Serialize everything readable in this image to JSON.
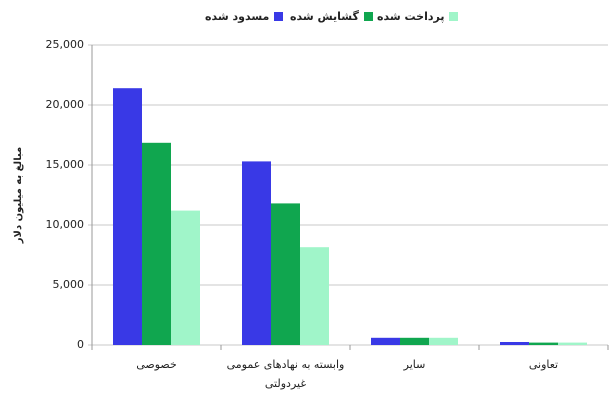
{
  "chart_data": {
    "type": "bar",
    "y_label": "مبالغ به میلیون دلار",
    "categories": [
      "خصوصی",
      "وابسته به نهادهای عمومی\nغیردولتی",
      "سایر",
      "تعاونی"
    ],
    "series": [
      {
        "name": "مسدود شده",
        "color": "#3939e6",
        "values": [
          21400,
          15300,
          600,
          250
        ]
      },
      {
        "name": "گشایش شده",
        "color": "#10a64f",
        "values": [
          16850,
          11800,
          600,
          200
        ]
      },
      {
        "name": "پرداخت شده",
        "color": "#a0f5c9",
        "values": [
          11200,
          8150,
          600,
          200
        ]
      }
    ],
    "ylim": [
      0,
      25000
    ],
    "yticks": [
      0,
      {
        "value": 5000,
        "label": "5,000"
      },
      {
        "value": 10000,
        "label": "10,000"
      },
      {
        "value": 15000,
        "label": "15,000"
      },
      {
        "value": 20000,
        "label": "20,000"
      },
      {
        "value": 25000,
        "label": "25,000"
      }
    ],
    "grid": true
  }
}
